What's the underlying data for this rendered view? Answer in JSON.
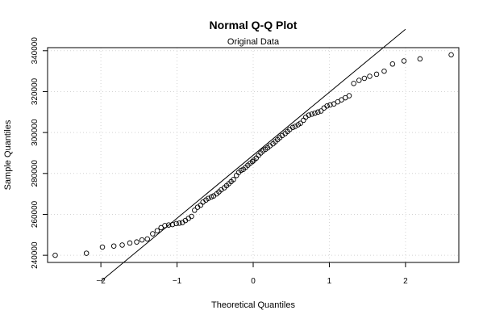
{
  "chart_data": {
    "type": "scatter",
    "title": "Normal Q-Q Plot",
    "subtitle": "Original Data",
    "xlabel": "Theoretical Quantiles",
    "ylabel": "Sample Quantiles",
    "xlim": [
      -2.7,
      2.7
    ],
    "ylim": [
      236500,
      341500
    ],
    "x_ticks": [
      -2,
      -1,
      0,
      1,
      2
    ],
    "x_tick_labels": [
      "−2",
      "−1",
      "0",
      "1",
      "2"
    ],
    "y_ticks": [
      240000,
      260000,
      280000,
      300000,
      320000,
      340000
    ],
    "y_tick_labels": [
      "240000",
      "260000",
      "280000",
      "300000",
      "320000",
      "340000"
    ],
    "grid": true,
    "reference_line": {
      "x": [
        -2.0,
        2.0
      ],
      "y": [
        227300,
        350500
      ]
    },
    "series": [
      {
        "marker": "open-circle",
        "x": [
          -2.6,
          -2.19,
          -1.98,
          -1.83,
          -1.72,
          -1.62,
          -1.53,
          -1.46,
          -1.39,
          -1.32,
          -1.26,
          -1.21,
          -1.16,
          -1.11,
          -1.06,
          -1.01,
          -0.97,
          -0.93,
          -0.89,
          -0.85,
          -0.81,
          -0.77,
          -0.73,
          -0.69,
          -0.66,
          -0.62,
          -0.59,
          -0.55,
          -0.52,
          -0.48,
          -0.45,
          -0.42,
          -0.38,
          -0.35,
          -0.32,
          -0.29,
          -0.26,
          -0.22,
          -0.19,
          -0.16,
          -0.13,
          -0.1,
          -0.07,
          -0.04,
          -0.01,
          0.01,
          0.04,
          0.07,
          0.1,
          0.13,
          0.16,
          0.19,
          0.22,
          0.26,
          0.29,
          0.32,
          0.35,
          0.38,
          0.42,
          0.45,
          0.48,
          0.52,
          0.55,
          0.59,
          0.62,
          0.66,
          0.69,
          0.73,
          0.77,
          0.81,
          0.85,
          0.89,
          0.93,
          0.97,
          1.01,
          1.06,
          1.11,
          1.16,
          1.21,
          1.26,
          1.32,
          1.39,
          1.46,
          1.53,
          1.62,
          1.72,
          1.83,
          1.98,
          2.19,
          2.6
        ],
        "y": [
          240000,
          241000,
          244000,
          244500,
          245000,
          246000,
          246500,
          247500,
          248000,
          250500,
          252000,
          253500,
          254500,
          254800,
          255000,
          255500,
          255700,
          256000,
          257000,
          258000,
          259000,
          262000,
          263500,
          264500,
          266000,
          267000,
          267800,
          268500,
          269000,
          270000,
          271000,
          272000,
          273000,
          274000,
          275000,
          276000,
          277000,
          279000,
          280500,
          281500,
          282000,
          283000,
          284000,
          285000,
          285800,
          286500,
          287500,
          288800,
          290000,
          291000,
          291800,
          292500,
          293500,
          294500,
          295500,
          296500,
          297500,
          298500,
          299500,
          300500,
          301500,
          302500,
          303000,
          303800,
          304500,
          306000,
          307500,
          308500,
          309000,
          309500,
          310000,
          310500,
          312000,
          313000,
          313500,
          314000,
          315000,
          316000,
          317000,
          318000,
          324000,
          325500,
          326500,
          327500,
          328500,
          330000,
          333500,
          335000,
          336000,
          338000
        ]
      }
    ]
  }
}
